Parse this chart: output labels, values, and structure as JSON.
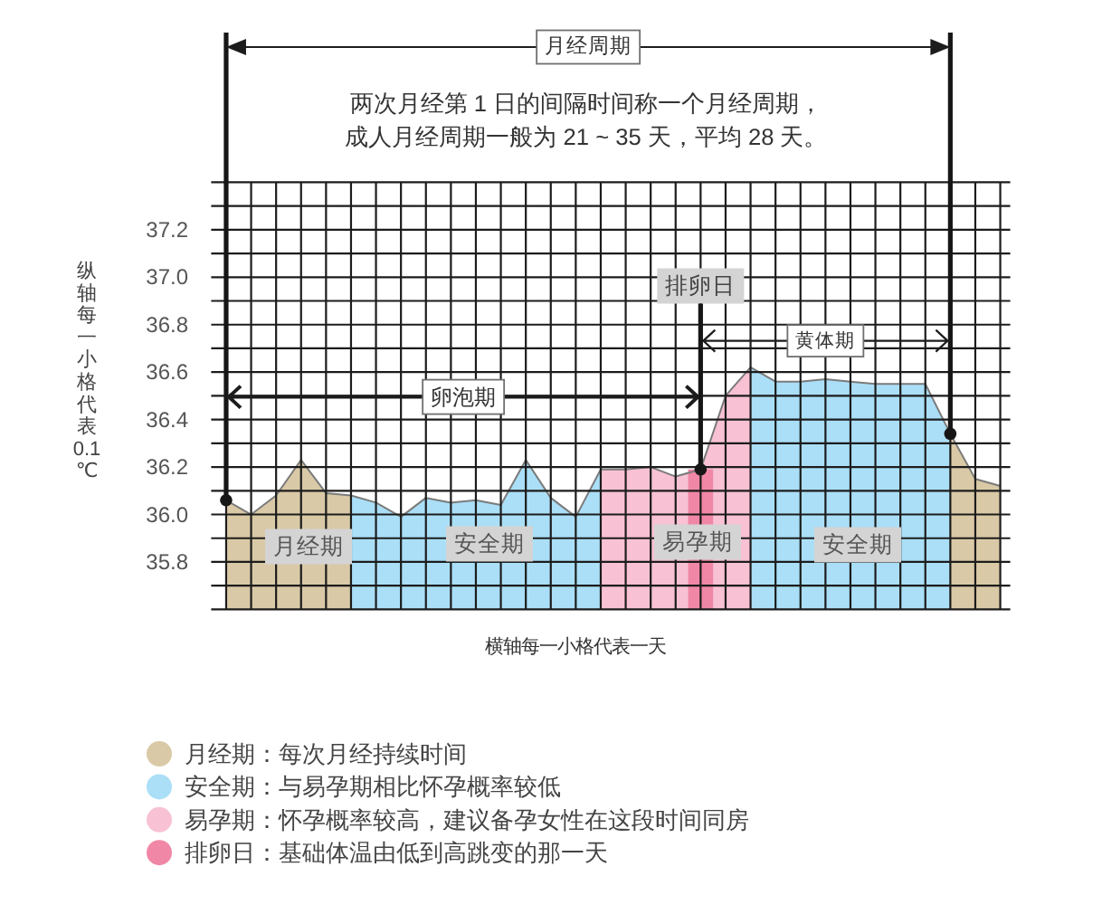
{
  "chart_data": {
    "type": "area",
    "xlabel": "横轴每一小格代表一天",
    "ylabel": "纵轴每一小格代表0.1℃",
    "categories": [
      null,
      null,
      null,
      null,
      null,
      null,
      null,
      null,
      null,
      null,
      null,
      null,
      null,
      null,
      null,
      null,
      null,
      null,
      null,
      null,
      null,
      null,
      null,
      null,
      null,
      null,
      null,
      null,
      null,
      null,
      null,
      null
    ],
    "series": [
      {
        "name": "月经期：每次月经持续时间",
        "color": "#d9c9a6",
        "values": [
          36.06,
          36.0,
          36.08,
          36.23,
          36.09,
          36.08,
          null,
          null,
          null,
          null,
          null,
          null,
          null,
          null,
          null,
          null,
          null,
          null,
          null,
          null,
          null,
          null,
          null,
          null,
          null,
          null,
          null,
          null,
          null,
          36.34,
          36.15,
          36.12
        ]
      },
      {
        "name": "安全期：与易孕期相比怀孕概率较低",
        "color": "#aadff7",
        "values": [
          null,
          null,
          null,
          null,
          null,
          36.08,
          36.05,
          35.99,
          36.07,
          36.05,
          36.06,
          36.04,
          36.23,
          36.07,
          35.99,
          36.19,
          null,
          null,
          null,
          null,
          null,
          36.62,
          36.56,
          36.56,
          36.57,
          36.56,
          36.55,
          36.55,
          36.55,
          36.34,
          null,
          null
        ]
      },
      {
        "name": "易孕期：怀孕概率较高，建议备孕女性在这段时间同房",
        "color": "#f8c1d4",
        "values": [
          null,
          null,
          null,
          null,
          null,
          null,
          null,
          null,
          null,
          null,
          null,
          null,
          null,
          null,
          null,
          36.19,
          36.19,
          36.2,
          36.16,
          36.19,
          36.5,
          36.62,
          null,
          null,
          null,
          null,
          null,
          null,
          null,
          null,
          null,
          null
        ]
      },
      {
        "name": "排卵日：基础体温由低到高跳变的那一天",
        "type": "bar",
        "color": "#f087a6",
        "values": [
          null,
          null,
          null,
          null,
          null,
          null,
          null,
          null,
          null,
          null,
          null,
          null,
          null,
          null,
          null,
          null,
          null,
          null,
          null,
          36.19,
          null,
          null,
          null,
          null,
          null,
          null,
          null,
          null,
          null,
          null,
          null,
          null
        ]
      }
    ],
    "ylim": [
      35.6,
      37.4
    ],
    "yticks": [
      {
        "value": 35.6,
        "label": null
      },
      {
        "value": 35.7,
        "label": null
      },
      35.8,
      {
        "value": 35.9,
        "label": null
      },
      {
        "value": 36.0,
        "label": "36.0"
      },
      {
        "value": 36.1,
        "label": null
      },
      36.2,
      {
        "value": 36.3,
        "label": null
      },
      36.4,
      {
        "value": 36.5,
        "label": null
      },
      36.6,
      {
        "value": 36.7,
        "label": null
      },
      36.8,
      {
        "value": 36.9,
        "label": null
      },
      {
        "value": 37.0,
        "label": "37.0"
      },
      {
        "value": 37.1,
        "label": null
      },
      37.2,
      {
        "value": 37.3,
        "label": null
      },
      {
        "value": 37.4,
        "label": null
      }
    ],
    "annotations": [
      "月经周期",
      "两次月经第 1 日的间隔时间称一个月经周期，成人月经周期一般为 21 ~ 35 天，平均 28 天。",
      "卵泡期",
      "黄体期",
      "排卵日",
      "月经期",
      "安全期",
      "易孕期",
      "安全期"
    ],
    "grid": true,
    "legend": "bottom",
    "tick_labels": "y"
  }
}
